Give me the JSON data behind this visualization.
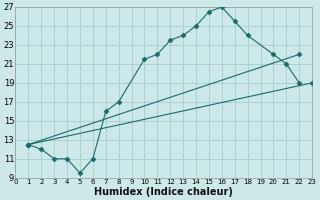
{
  "xlabel": "Humidex (Indice chaleur)",
  "background_color": "#cce8e8",
  "grid_color": "#a8cccc",
  "line_color": "#1a6b6b",
  "xlim": [
    0,
    23
  ],
  "ylim": [
    9,
    27
  ],
  "xticks": [
    0,
    1,
    2,
    3,
    4,
    5,
    6,
    7,
    8,
    9,
    10,
    11,
    12,
    13,
    14,
    15,
    16,
    17,
    18,
    19,
    20,
    21,
    22,
    23
  ],
  "yticks": [
    9,
    11,
    13,
    15,
    17,
    19,
    21,
    23,
    25,
    27
  ],
  "line_main_x": [
    1,
    2,
    3,
    4,
    5,
    6,
    7,
    8,
    10,
    11,
    12,
    13,
    14,
    15,
    16,
    17,
    18,
    20,
    21,
    22
  ],
  "line_main_y": [
    12.5,
    12,
    11,
    11,
    9.5,
    11,
    16,
    17,
    21.5,
    22,
    23.5,
    24,
    25,
    26.5,
    27,
    25.5,
    24,
    22,
    21,
    19
  ],
  "line2_x": [
    1,
    22
  ],
  "line2_y": [
    12.5,
    22
  ],
  "line3_x": [
    1,
    23
  ],
  "line3_y": [
    12.5,
    19
  ]
}
